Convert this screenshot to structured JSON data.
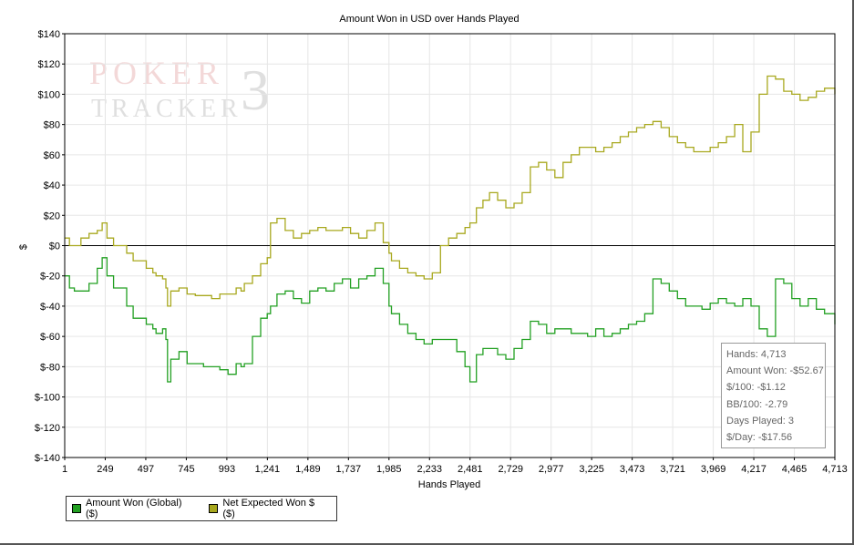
{
  "chart_data": {
    "type": "line",
    "title": "Amount Won in USD over Hands Played",
    "xlabel": "Hands Played",
    "ylabel": "$",
    "xlim": [
      1,
      4713
    ],
    "ylim": [
      -140,
      140
    ],
    "grid": true,
    "x_ticks": [
      1,
      249,
      497,
      745,
      993,
      1241,
      1489,
      1737,
      1985,
      2233,
      2481,
      2729,
      2977,
      3225,
      3473,
      3721,
      3969,
      4217,
      4465,
      4713
    ],
    "x_tick_labels": [
      "1",
      "249",
      "497",
      "745",
      "993",
      "1,241",
      "1,489",
      "1,737",
      "1,985",
      "2,233",
      "2,481",
      "2,729",
      "2,977",
      "3,225",
      "3,473",
      "3,721",
      "3,969",
      "4,217",
      "4,465",
      "4,713"
    ],
    "y_ticks": [
      140,
      120,
      100,
      80,
      60,
      40,
      20,
      0,
      -20,
      -40,
      -60,
      -80,
      -100,
      -120,
      -140
    ],
    "y_tick_labels": [
      "$140",
      "$120",
      "$100",
      "$80",
      "$60",
      "$40",
      "$20",
      "$0",
      "$-20",
      "$-40",
      "$-60",
      "$-80",
      "$-100",
      "$-120",
      "$-140"
    ],
    "series": [
      {
        "name": "Amount Won (Global) ($)",
        "color": "#22a022",
        "x": [
          1,
          30,
          60,
          100,
          150,
          200,
          230,
          260,
          300,
          380,
          420,
          500,
          540,
          560,
          600,
          620,
          630,
          650,
          700,
          750,
          800,
          850,
          900,
          950,
          1000,
          1050,
          1080,
          1100,
          1150,
          1200,
          1240,
          1260,
          1300,
          1350,
          1400,
          1450,
          1500,
          1550,
          1600,
          1650,
          1700,
          1750,
          1800,
          1850,
          1900,
          1950,
          1985,
          2000,
          2050,
          2100,
          2150,
          2200,
          2250,
          2300,
          2350,
          2400,
          2450,
          2480,
          2520,
          2560,
          2600,
          2650,
          2700,
          2750,
          2800,
          2850,
          2900,
          2950,
          3000,
          3050,
          3100,
          3150,
          3200,
          3250,
          3300,
          3350,
          3400,
          3450,
          3500,
          3550,
          3600,
          3650,
          3700,
          3750,
          3800,
          3850,
          3900,
          3950,
          4000,
          4050,
          4100,
          4150,
          4200,
          4250,
          4300,
          4350,
          4400,
          4450,
          4500,
          4550,
          4600,
          4650,
          4713
        ],
        "y": [
          -20,
          -28,
          -30,
          -30,
          -25,
          -15,
          -8,
          -20,
          -28,
          -40,
          -48,
          -52,
          -55,
          -58,
          -55,
          -62,
          -90,
          -75,
          -70,
          -78,
          -78,
          -80,
          -80,
          -82,
          -85,
          -78,
          -80,
          -78,
          -60,
          -48,
          -45,
          -40,
          -32,
          -30,
          -35,
          -38,
          -30,
          -28,
          -30,
          -25,
          -22,
          -28,
          -22,
          -20,
          -15,
          -25,
          -40,
          -45,
          -52,
          -58,
          -62,
          -65,
          -62,
          -62,
          -62,
          -70,
          -80,
          -90,
          -72,
          -68,
          -68,
          -72,
          -75,
          -68,
          -62,
          -50,
          -52,
          -58,
          -55,
          -55,
          -58,
          -58,
          -60,
          -55,
          -60,
          -58,
          -55,
          -52,
          -50,
          -45,
          -22,
          -25,
          -30,
          -35,
          -40,
          -40,
          -42,
          -38,
          -35,
          -38,
          -40,
          -35,
          -40,
          -55,
          -60,
          -22,
          -25,
          -35,
          -40,
          -35,
          -42,
          -45,
          -52
        ]
      },
      {
        "name": "Net Expected Won $ ($)",
        "color": "#a8a81e",
        "x": [
          1,
          30,
          60,
          100,
          150,
          200,
          230,
          260,
          300,
          380,
          420,
          500,
          540,
          560,
          600,
          620,
          630,
          650,
          700,
          750,
          800,
          850,
          900,
          950,
          1000,
          1050,
          1080,
          1100,
          1150,
          1200,
          1240,
          1260,
          1300,
          1350,
          1400,
          1450,
          1500,
          1550,
          1600,
          1650,
          1700,
          1750,
          1800,
          1850,
          1900,
          1950,
          1985,
          2000,
          2050,
          2100,
          2150,
          2200,
          2250,
          2300,
          2350,
          2400,
          2450,
          2480,
          2520,
          2560,
          2600,
          2650,
          2700,
          2750,
          2800,
          2850,
          2900,
          2950,
          3000,
          3050,
          3100,
          3150,
          3200,
          3250,
          3300,
          3350,
          3400,
          3450,
          3500,
          3550,
          3600,
          3650,
          3700,
          3750,
          3800,
          3850,
          3900,
          3950,
          4000,
          4050,
          4100,
          4150,
          4200,
          4250,
          4300,
          4350,
          4400,
          4450,
          4500,
          4550,
          4600,
          4650,
          4713
        ],
        "y": [
          5,
          0,
          0,
          5,
          8,
          10,
          15,
          5,
          0,
          -5,
          -10,
          -15,
          -18,
          -20,
          -22,
          -28,
          -40,
          -30,
          -28,
          -32,
          -33,
          -33,
          -35,
          -32,
          -32,
          -28,
          -30,
          -25,
          -20,
          -12,
          -8,
          15,
          18,
          10,
          5,
          8,
          10,
          12,
          10,
          10,
          12,
          8,
          5,
          10,
          15,
          2,
          -5,
          -10,
          -15,
          -18,
          -20,
          -22,
          -18,
          0,
          5,
          8,
          12,
          15,
          25,
          30,
          35,
          30,
          25,
          28,
          35,
          52,
          55,
          50,
          45,
          55,
          60,
          65,
          65,
          62,
          65,
          68,
          72,
          75,
          78,
          80,
          82,
          78,
          72,
          68,
          65,
          62,
          62,
          65,
          68,
          72,
          80,
          62,
          75,
          100,
          112,
          110,
          102,
          100,
          96,
          98,
          102,
          104,
          100
        ]
      }
    ]
  },
  "stats": {
    "hands": "Hands: 4,713",
    "amount_won": "Amount Won: -$52.67",
    "per100": "$/100: -$1.12",
    "bb100": "BB/100: -2.79",
    "days_played": "Days Played: 3",
    "per_day": "$/Day: -$17.56"
  },
  "legend": {
    "item1": "Amount Won (Global) ($)",
    "item2": "Net Expected Won $ ($)",
    "color1": "#22a022",
    "color2": "#a8a81e"
  },
  "watermark": {
    "line1": "POKER",
    "line2": "TRACKER",
    "numeral": "3"
  }
}
